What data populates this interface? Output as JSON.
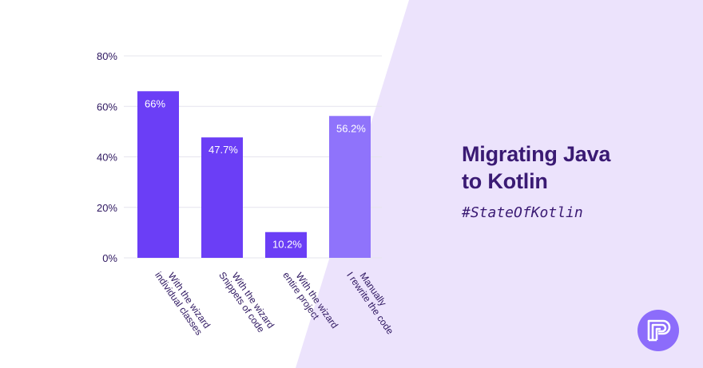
{
  "page": {
    "background_color": "#ffffff",
    "panel_color": "#ece3fc",
    "title_line1": "Migrating Java",
    "title_line2": "to Kotlin",
    "hashtag": "#StateOfKotlin",
    "title_color": "#3a1a73",
    "logo_icon": "tiered-p-logo-icon",
    "logo_color": "#8c6cfb"
  },
  "chart_data": {
    "type": "bar",
    "title": "",
    "xlabel": "",
    "ylabel": "",
    "ylim": [
      0,
      80
    ],
    "yticks": [
      0,
      20,
      40,
      60,
      80
    ],
    "ytick_labels": [
      "0%",
      "20%",
      "40%",
      "60%",
      "80%"
    ],
    "grid": "horizontal",
    "categories": [
      [
        "With the wizard",
        "individual classes"
      ],
      [
        "With the wizard",
        "Snippets of code"
      ],
      [
        "With the wizard",
        "entire project"
      ],
      [
        "Manually",
        "I rewrite the code"
      ]
    ],
    "values": [
      66,
      47.7,
      10.2,
      56.2
    ],
    "value_labels": [
      "66%",
      "47.7%",
      "10.2%",
      "56.2%"
    ],
    "bar_colors": [
      "#6b3ef6",
      "#6b3ef6",
      "#6b3ef6",
      "#8f73fb"
    ],
    "axis_text_color": "#2e1760",
    "grid_color": "#e6e4ee"
  }
}
